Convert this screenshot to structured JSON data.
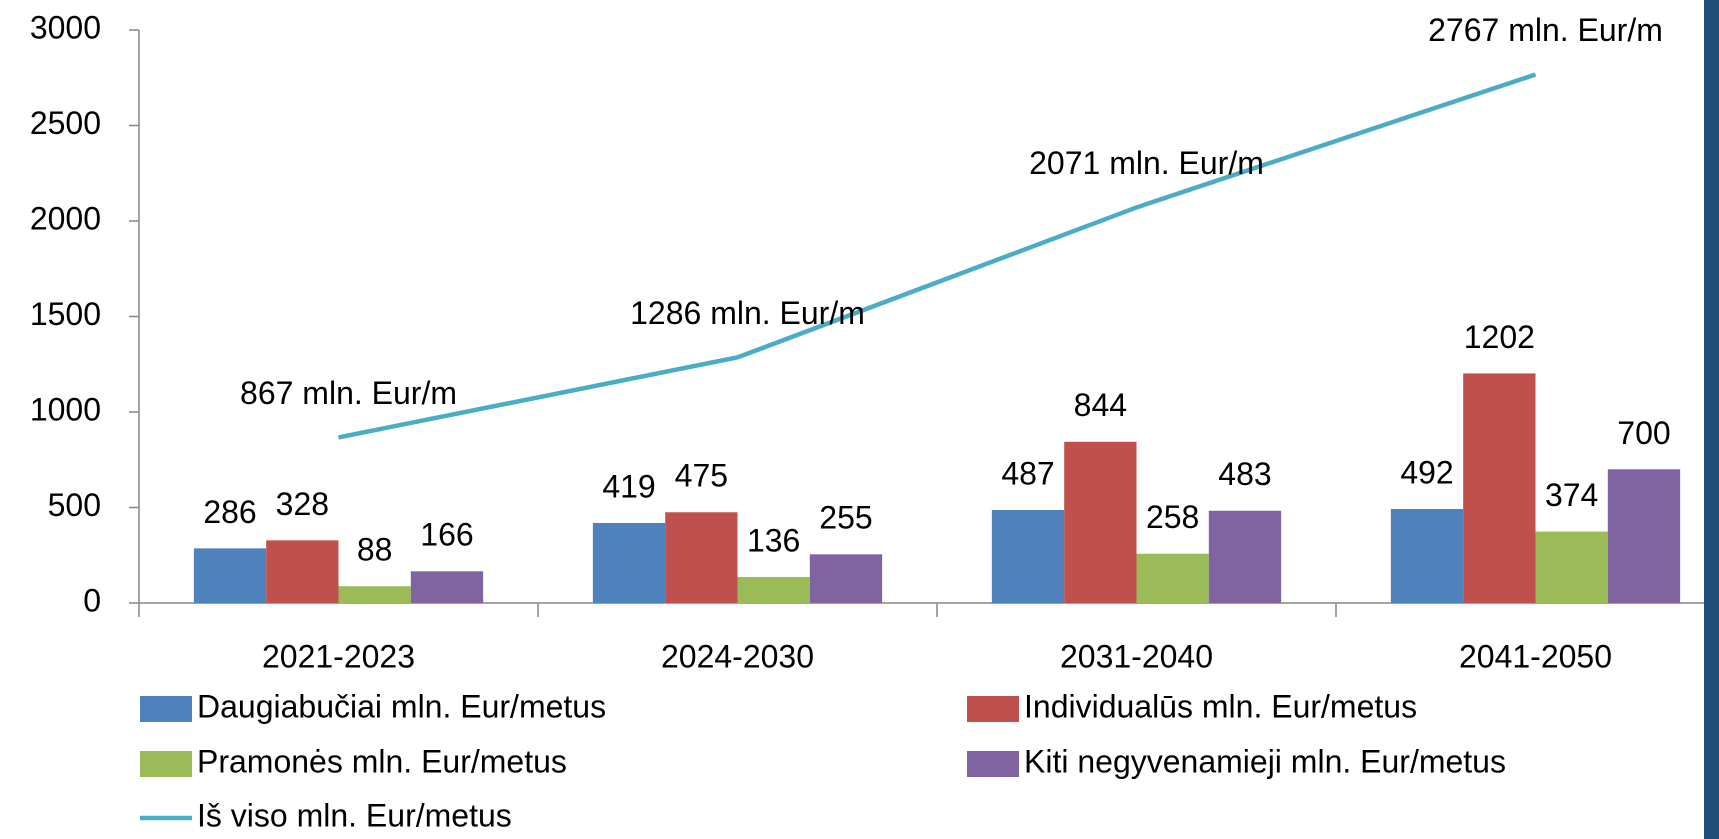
{
  "chart_data": {
    "type": "bar",
    "categories": [
      "2021-2023",
      "2024-2030",
      "2031-2040",
      "2041-2050"
    ],
    "series": [
      {
        "name": "Daugiabučiai mln. Eur/metus",
        "color": "#4f81bd",
        "values": [
          286,
          419,
          487,
          492
        ]
      },
      {
        "name": "Individualūs  mln. Eur/metus",
        "color": "#c0504d",
        "values": [
          328,
          475,
          844,
          1202
        ]
      },
      {
        "name": "Pramonės mln. Eur/metus",
        "color": "#9bbb59",
        "values": [
          88,
          136,
          258,
          374
        ]
      },
      {
        "name": "Kiti negyvenamieji mln. Eur/metus",
        "color": "#8064a2",
        "values": [
          166,
          255,
          483,
          700
        ]
      },
      {
        "name": "Iš viso mln. Eur/metus",
        "color": "#4bacc6",
        "type": "line",
        "values": [
          867,
          1286,
          2071,
          2767
        ],
        "value_labels": [
          "867 mln. Eur/m",
          "1286 mln. Eur/m",
          "2071 mln. Eur/m",
          "2767 mln. Eur/m"
        ]
      }
    ],
    "ylim": [
      0,
      3000
    ],
    "yticks": [
      0,
      500,
      1000,
      1500,
      2000,
      2500,
      3000
    ],
    "grid": false
  }
}
